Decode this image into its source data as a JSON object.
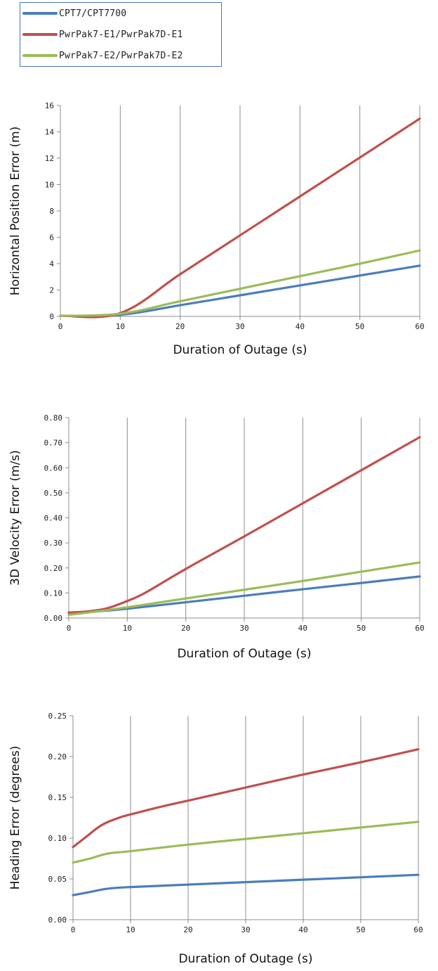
{
  "legend": {
    "items": [
      {
        "label": "CPT7/CPT7700",
        "color": "#4a7ebb"
      },
      {
        "label": "PwrPak7-E1/PwrPak7D-E1",
        "color": "#c0504d"
      },
      {
        "label": "PwrPak7-E2/PwrPak7D-E2",
        "color": "#9bbb59"
      }
    ]
  },
  "chart_data": [
    {
      "type": "line",
      "xlabel": "Duration of Outage (s)",
      "ylabel": "Horizontal Position Error (m)",
      "xlim": [
        0,
        60
      ],
      "ylim": [
        0,
        16
      ],
      "x_ticks": [
        "0",
        "10",
        "20",
        "30",
        "40",
        "50",
        "60"
      ],
      "y_ticks": [
        "0",
        "2",
        "4",
        "6",
        "8",
        "10",
        "12",
        "14",
        "16"
      ],
      "grid": "vertical",
      "series": [
        {
          "name": "CPT7/CPT7700",
          "color": "#4a7ebb",
          "points": [
            [
              0,
              0.05
            ],
            [
              10,
              0.12
            ],
            [
              20,
              0.85
            ],
            [
              30,
              1.6
            ],
            [
              40,
              2.35
            ],
            [
              50,
              3.1
            ],
            [
              60,
              3.85
            ]
          ]
        },
        {
          "name": "PwrPak7-E1/PwrPak7D-E1",
          "color": "#c0504d",
          "points": [
            [
              0,
              0.05
            ],
            [
              10,
              0.25
            ],
            [
              20,
              3.2
            ],
            [
              30,
              6.15
            ],
            [
              40,
              9.1
            ],
            [
              50,
              12.05
            ],
            [
              60,
              15.0
            ]
          ]
        },
        {
          "name": "PwrPak7-E2/PwrPak7D-E2",
          "color": "#9bbb59",
          "points": [
            [
              0,
              0.05
            ],
            [
              10,
              0.2
            ],
            [
              20,
              1.15
            ],
            [
              30,
              2.1
            ],
            [
              40,
              3.05
            ],
            [
              50,
              4.0
            ],
            [
              60,
              5.0
            ]
          ]
        }
      ]
    },
    {
      "type": "line",
      "xlabel": "Duration of Outage (s)",
      "ylabel": "3D Velocity Error (m/s)",
      "xlim": [
        0,
        60
      ],
      "ylim": [
        0,
        0.8
      ],
      "x_ticks": [
        "0",
        "10",
        "20",
        "30",
        "40",
        "50",
        "60"
      ],
      "y_ticks": [
        "0.00",
        "0.10",
        "0.20",
        "0.30",
        "0.40",
        "0.50",
        "0.60",
        "0.70",
        "0.80"
      ],
      "grid": "vertical",
      "series": [
        {
          "name": "CPT7/CPT7700",
          "color": "#4a7ebb",
          "points": [
            [
              0,
              0.02
            ],
            [
              5,
              0.027
            ],
            [
              10,
              0.037
            ],
            [
              20,
              0.063
            ],
            [
              30,
              0.089
            ],
            [
              40,
              0.115
            ],
            [
              50,
              0.14
            ],
            [
              60,
              0.166
            ]
          ]
        },
        {
          "name": "PwrPak7-E1/PwrPak7D-E1",
          "color": "#c0504d",
          "points": [
            [
              0,
              0.022
            ],
            [
              3,
              0.026
            ],
            [
              6,
              0.036
            ],
            [
              8,
              0.05
            ],
            [
              10,
              0.068
            ],
            [
              13,
              0.1
            ],
            [
              20,
              0.196
            ],
            [
              30,
              0.326
            ],
            [
              40,
              0.458
            ],
            [
              50,
              0.59
            ],
            [
              60,
              0.722
            ]
          ]
        },
        {
          "name": "PwrPak7-E2/PwrPak7D-E2",
          "color": "#9bbb59",
          "points": [
            [
              0,
              0.013
            ],
            [
              5,
              0.027
            ],
            [
              10,
              0.043
            ],
            [
              20,
              0.078
            ],
            [
              30,
              0.113
            ],
            [
              40,
              0.148
            ],
            [
              50,
              0.185
            ],
            [
              60,
              0.222
            ]
          ]
        }
      ]
    },
    {
      "type": "line",
      "xlabel": "Duration of Outage (s)",
      "ylabel": "Heading Error (degrees)",
      "xlim": [
        0,
        60
      ],
      "ylim": [
        0,
        0.25
      ],
      "x_ticks": [
        "0",
        "10",
        "20",
        "30",
        "40",
        "50",
        "60"
      ],
      "y_ticks": [
        "0.00",
        "0.05",
        "0.10",
        "0.15",
        "0.20",
        "0.25"
      ],
      "grid": "vertical",
      "series": [
        {
          "name": "CPT7/CPT7700",
          "color": "#4a7ebb",
          "points": [
            [
              0,
              0.03
            ],
            [
              3,
              0.034
            ],
            [
              6,
              0.038
            ],
            [
              10,
              0.04
            ],
            [
              20,
              0.043
            ],
            [
              30,
              0.046
            ],
            [
              40,
              0.049
            ],
            [
              50,
              0.052
            ],
            [
              60,
              0.055
            ]
          ]
        },
        {
          "name": "PwrPak7-E1/PwrPak7D-E1",
          "color": "#c0504d",
          "points": [
            [
              0,
              0.089
            ],
            [
              2,
              0.1
            ],
            [
              5,
              0.116
            ],
            [
              8,
              0.125
            ],
            [
              10,
              0.129
            ],
            [
              15,
              0.138
            ],
            [
              20,
              0.146
            ],
            [
              30,
              0.162
            ],
            [
              40,
              0.178
            ],
            [
              50,
              0.193
            ],
            [
              60,
              0.209
            ]
          ]
        },
        {
          "name": "PwrPak7-E2/PwrPak7D-E2",
          "color": "#9bbb59",
          "points": [
            [
              0,
              0.07
            ],
            [
              3,
              0.075
            ],
            [
              6,
              0.081
            ],
            [
              10,
              0.084
            ],
            [
              20,
              0.092
            ],
            [
              30,
              0.099
            ],
            [
              40,
              0.106
            ],
            [
              50,
              0.113
            ],
            [
              60,
              0.12
            ]
          ]
        }
      ]
    }
  ]
}
